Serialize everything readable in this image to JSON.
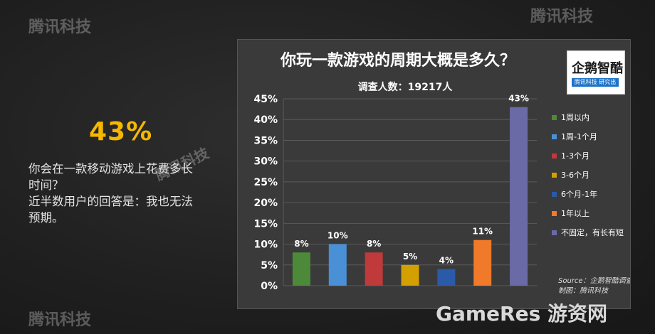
{
  "left": {
    "stat": "43%",
    "question_line1": "你会在一款移动游戏上花费多长",
    "question_line2": "时间？",
    "answer_line1": "近半数用户的回答是：我也无法",
    "answer_line2": "预期。"
  },
  "logo": {
    "name": "企鹅智酷",
    "tagline": "腾讯科技  研究出品"
  },
  "watermark_text": "腾讯科技",
  "footer_watermark": "GameRes 游资网",
  "colors": {
    "stat": "#f5b800",
    "bar_colors": [
      "#4c8a3a",
      "#4a90d6",
      "#c0393b",
      "#d3a000",
      "#2b5aa8",
      "#f07a2a",
      "#6a6aa6"
    ]
  },
  "chart_data": {
    "type": "bar",
    "title": "你玩一款游戏的周期大概是多久？",
    "subtitle": "调查人数：19217人",
    "categories": [
      "1周以内",
      "1周-1个月",
      "1-3个月",
      "3-6个月",
      "6个月-1年",
      "1年以上",
      "不固定，有长有短"
    ],
    "values": [
      8,
      10,
      8,
      5,
      4,
      11,
      43
    ],
    "value_labels": [
      "8%",
      "10%",
      "8%",
      "5%",
      "4%",
      "11%",
      "43%"
    ],
    "ylim": [
      0,
      45
    ],
    "yticks": [
      "0%",
      "5%",
      "10%",
      "15%",
      "20%",
      "25%",
      "30%",
      "35%",
      "40%",
      "45%"
    ],
    "grid": true,
    "legend_position": "right",
    "source_line1": "Source：企鹅智酷调查",
    "source_line2": "制图：腾讯科技"
  }
}
